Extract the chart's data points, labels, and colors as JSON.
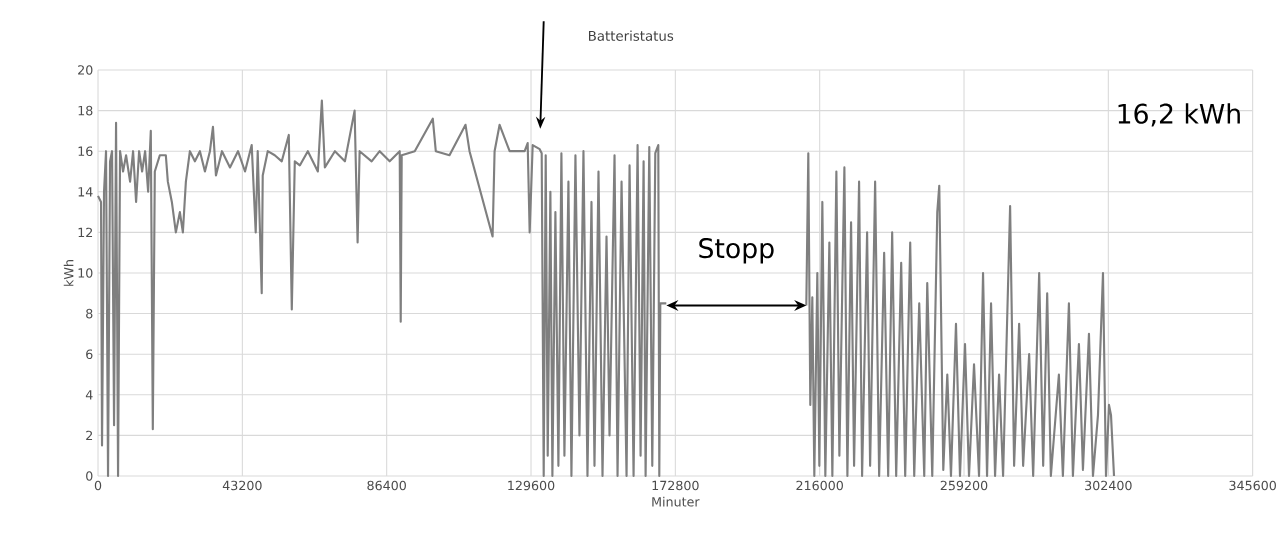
{
  "chart_data": {
    "type": "line",
    "xlabel": "Minuter",
    "ylabel": "kWh",
    "xlim": [
      0,
      345600
    ],
    "ylim": [
      0,
      20
    ],
    "xticks": [
      0,
      43200,
      86400,
      129600,
      172800,
      216000,
      259200,
      302400,
      345600
    ],
    "yticks": [
      0,
      2,
      4,
      6,
      8,
      10,
      12,
      14,
      16,
      18,
      20
    ],
    "grid": true,
    "legend": false,
    "marker": "none",
    "line_style": "solid",
    "annotations": [
      "Batteristatus",
      "16,2 kWh",
      "Stopp"
    ],
    "series": [
      {
        "color": "#7f7f7f",
        "x": [
          0,
          900,
          1200,
          1800,
          2400,
          3000,
          3600,
          4200,
          4800,
          5400,
          6000,
          6600,
          7500,
          8400,
          9600,
          10500,
          11400,
          12300,
          13200,
          14100,
          15000,
          15800,
          16400,
          17000,
          18500,
          20300,
          20900,
          22100,
          23300,
          24500,
          25400,
          26300,
          27500,
          29000,
          30500,
          32000,
          33500,
          34400,
          35300,
          37100,
          39500,
          41900,
          44000,
          46000,
          47200,
          47800,
          49000,
          49300,
          50800,
          52900,
          55000,
          57100,
          58000,
          58900,
          60400,
          62800,
          65800,
          67000,
          67900,
          70900,
          73900,
          76800,
          77700,
          78300,
          81900,
          84300,
          87300,
          90300,
          90600,
          90900,
          94800,
          100200,
          101100,
          105200,
          110000,
          111200,
          118100,
          118700,
          120200,
          123200,
          127700,
          128600,
          129200,
          130100,
          132200,
          132800,
          133400,
          134000,
          134600,
          135400,
          136000,
          136900,
          137800,
          138700,
          139600,
          140800,
          141700,
          142900,
          144100,
          145300,
          146500,
          147700,
          148600,
          149800,
          151000,
          152200,
          153100,
          154600,
          155500,
          156700,
          158200,
          159100,
          160300,
          161500,
          162400,
          163300,
          163900,
          165000,
          165900,
          166800,
          167700,
          168000,
          168300,
          170100,
          191000,
          212000,
          212600,
          213200,
          213800,
          214400,
          215300,
          215900,
          216800,
          217700,
          218900,
          219800,
          221000,
          221900,
          223400,
          224300,
          225400,
          226300,
          227800,
          228700,
          230200,
          231100,
          232600,
          233800,
          235300,
          236500,
          237700,
          238900,
          240400,
          241600,
          243100,
          244300,
          245800,
          247300,
          248200,
          249700,
          251200,
          251800,
          253000,
          254200,
          255300,
          256800,
          258000,
          259500,
          260700,
          262200,
          263700,
          264900,
          266100,
          267300,
          268500,
          269700,
          270900,
          273000,
          274200,
          275700,
          276900,
          278700,
          279900,
          281700,
          282900,
          284100,
          285200,
          287600,
          288800,
          290600,
          291800,
          293600,
          294800,
          296600,
          297800,
          299300,
          300800,
          301700,
          302600,
          303200,
          304100
        ],
        "values": [
          13.8,
          13.5,
          1.5,
          14,
          16,
          0,
          15.5,
          16,
          2.5,
          17.4,
          0,
          16,
          15,
          15.8,
          14.5,
          16,
          13.5,
          16,
          15,
          16,
          14,
          17,
          2.3,
          15,
          15.8,
          15.8,
          14.5,
          13.5,
          12,
          13,
          12,
          14.5,
          16,
          15.5,
          16,
          15,
          16,
          17.2,
          14.8,
          16,
          15.2,
          16,
          15,
          16.3,
          12,
          16,
          9,
          14.8,
          16,
          15.8,
          15.5,
          16.8,
          8.2,
          15.5,
          15.3,
          16,
          15,
          18.5,
          15.2,
          16,
          15.5,
          18,
          11.5,
          16,
          15.5,
          16,
          15.5,
          16,
          7.6,
          15.8,
          16,
          17.6,
          16,
          15.8,
          17.3,
          16,
          11.8,
          16,
          17.3,
          16,
          16,
          16.4,
          12,
          16.3,
          16.1,
          15.9,
          0,
          15.8,
          1,
          14,
          0,
          13,
          0.5,
          15.9,
          1,
          14.5,
          0,
          15.8,
          2,
          16,
          0,
          13.5,
          0.5,
          15,
          0,
          11.8,
          2,
          15.8,
          0,
          14.5,
          0,
          15.3,
          0,
          16.3,
          1,
          15.5,
          0,
          16.2,
          0.5,
          15.9,
          16.3,
          0,
          8.5,
          8.5,
          null,
          8.4,
          15.9,
          3.5,
          8.8,
          0,
          10,
          0.5,
          13.5,
          0,
          11.5,
          0,
          15,
          1,
          15.2,
          0,
          12.5,
          0.5,
          14.5,
          0,
          12,
          0.5,
          14.5,
          0,
          11,
          0,
          12,
          0,
          10.5,
          0,
          11.5,
          0,
          8.5,
          0,
          9.5,
          0,
          13,
          14.3,
          0.3,
          5,
          0,
          7.5,
          0,
          6.5,
          0,
          5.5,
          0,
          10,
          0,
          8.5,
          0,
          5,
          0,
          13.3,
          0.5,
          7.5,
          0.5,
          6,
          0,
          10,
          0.5,
          9,
          0,
          5,
          0,
          8.5,
          0,
          6.5,
          0.3,
          7,
          0,
          3,
          10,
          0,
          3.5,
          3,
          0
        ]
      }
    ]
  }
}
